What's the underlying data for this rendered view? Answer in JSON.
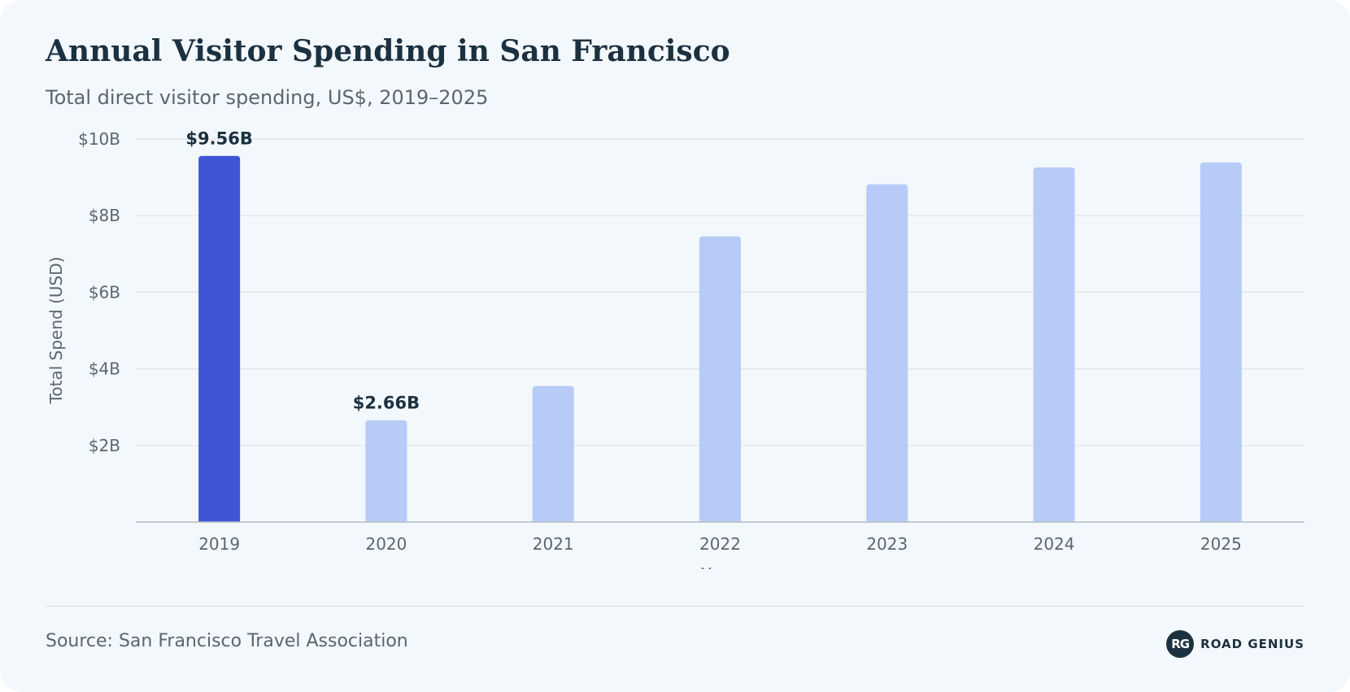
{
  "header": {
    "title": "Annual Visitor Spending in San Francisco",
    "subtitle": "Total direct visitor spending, US$, 2019–2025"
  },
  "footer": {
    "source": "Source: San Francisco Travel Association",
    "brand_monogram": "RG",
    "brand_name": "ROAD GENIUS"
  },
  "colors": {
    "highlight": "#3f55d6",
    "bar": "#b8cbf7",
    "grid": "#dde2e6",
    "axis": "#b5bcc2",
    "background": "#f3f8fd"
  },
  "chart_data": {
    "type": "bar",
    "categories": [
      "2019",
      "2020",
      "2021",
      "2022",
      "2023",
      "2024",
      "2025"
    ],
    "values": [
      9.56,
      2.66,
      3.55,
      7.46,
      8.82,
      9.26,
      9.39
    ],
    "highlighted": [
      true,
      false,
      false,
      false,
      false,
      false,
      false
    ],
    "data_labels": [
      {
        "index": 0,
        "text": "$9.56B"
      },
      {
        "index": 1,
        "text": "$2.66B"
      }
    ],
    "xlabel": "Year",
    "ylabel": "Total Spend (USD)",
    "ylim": [
      0,
      10
    ],
    "yticks": [
      {
        "value": 2,
        "label": "$2B"
      },
      {
        "value": 4,
        "label": "$4B"
      },
      {
        "value": 6,
        "label": "$6B"
      },
      {
        "value": 8,
        "label": "$8B"
      },
      {
        "value": 10,
        "label": "$10B"
      }
    ],
    "grid": true,
    "legend": "none"
  }
}
